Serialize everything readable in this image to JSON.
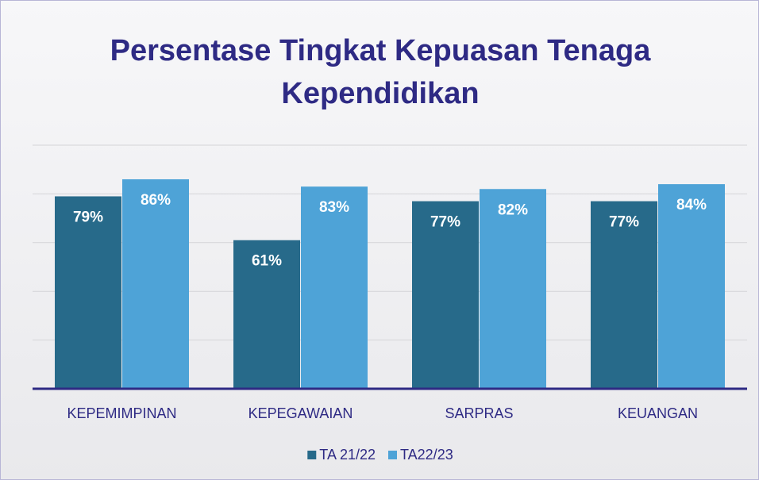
{
  "chart_data": {
    "type": "bar",
    "title": "Persentase Tingkat Kepuasan Tenaga Kependidikan",
    "categories": [
      "KEPEMIMPINAN",
      "KEPEGAWAIAN",
      "SARPRAS",
      "KEUANGAN"
    ],
    "series": [
      {
        "name": "TA 21/22",
        "color": "#276a8a",
        "values": [
          79,
          61,
          77,
          77
        ],
        "value_labels": [
          "79%",
          "61%",
          "77%",
          "77%"
        ]
      },
      {
        "name": "TA22/23",
        "color": "#4ea3d7",
        "values": [
          86,
          83,
          82,
          84
        ],
        "value_labels": [
          "86%",
          "83%",
          "82%",
          "84%"
        ]
      }
    ],
    "ylim": [
      0,
      100
    ],
    "yticks": [
      0,
      20,
      40,
      60,
      80,
      100
    ],
    "grid": true,
    "legend": "bottom"
  }
}
